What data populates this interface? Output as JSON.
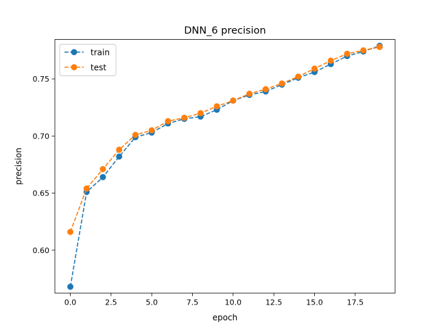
{
  "chart_data": {
    "type": "line",
    "title": "DNN_6 precision",
    "xlabel": "epoch",
    "ylabel": "precision",
    "xlim": [
      -0.95,
      19.95
    ],
    "ylim": [
      0.5625,
      0.7845
    ],
    "grid": false,
    "legend_position": "top-left",
    "x_ticks": [
      0.0,
      2.5,
      5.0,
      7.5,
      10.0,
      12.5,
      15.0,
      17.5
    ],
    "x_tick_labels": [
      "0.0",
      "2.5",
      "5.0",
      "7.5",
      "10.0",
      "12.5",
      "15.0",
      "17.5"
    ],
    "y_ticks": [
      0.6,
      0.65,
      0.7,
      0.75
    ],
    "y_tick_labels": [
      "0.60",
      "0.65",
      "0.70",
      "0.75"
    ],
    "x": [
      0,
      1,
      2,
      3,
      4,
      5,
      6,
      7,
      8,
      9,
      10,
      11,
      12,
      13,
      14,
      15,
      16,
      17,
      18,
      19
    ],
    "series": [
      {
        "name": "train",
        "color": "#1f77b4",
        "values": [
          0.568,
          0.651,
          0.664,
          0.682,
          0.699,
          0.703,
          0.711,
          0.715,
          0.717,
          0.723,
          0.731,
          0.736,
          0.739,
          0.745,
          0.751,
          0.756,
          0.763,
          0.77,
          0.774,
          0.779
        ]
      },
      {
        "name": "test",
        "color": "#ff7f0e",
        "values": [
          0.616,
          0.654,
          0.671,
          0.688,
          0.701,
          0.705,
          0.713,
          0.716,
          0.72,
          0.726,
          0.731,
          0.737,
          0.741,
          0.746,
          0.752,
          0.759,
          0.766,
          0.772,
          0.775,
          0.778
        ]
      }
    ]
  }
}
